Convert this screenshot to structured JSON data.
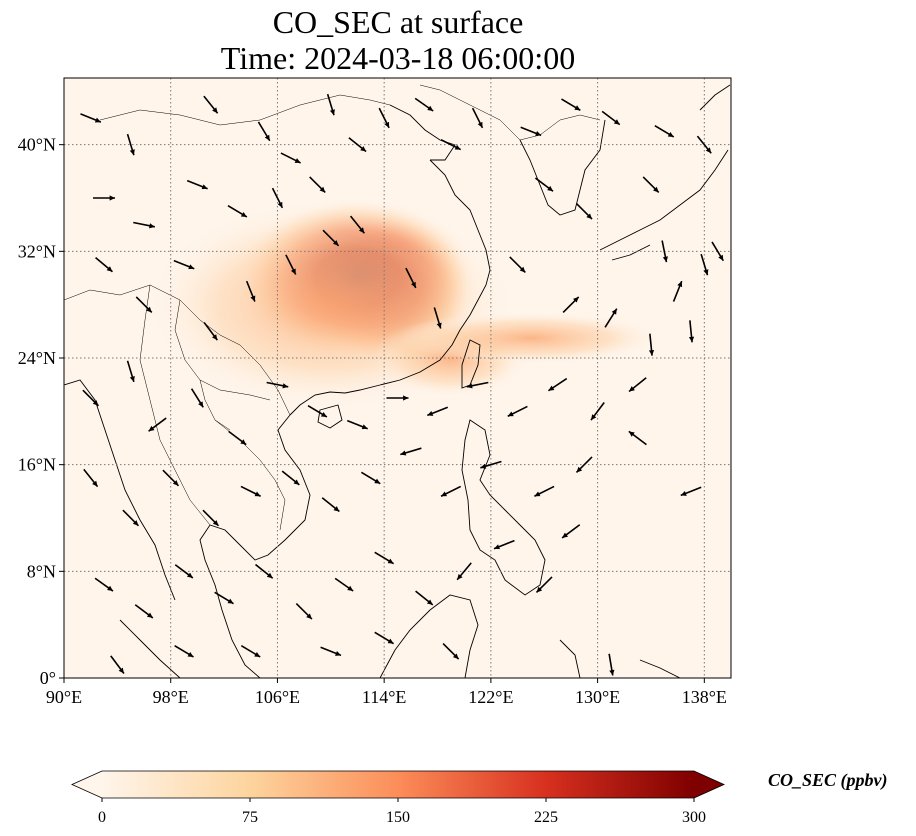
{
  "title_line1": "CO_SEC at surface",
  "title_line2": "Time: 2024-03-18 06:00:00",
  "map": {
    "lon_range": [
      90,
      140
    ],
    "lat_range": [
      0,
      45
    ],
    "lon_ticks": [
      {
        "value": 90,
        "label": "90°E"
      },
      {
        "value": 98,
        "label": "98°E"
      },
      {
        "value": 106,
        "label": "106°E"
      },
      {
        "value": 114,
        "label": "114°E"
      },
      {
        "value": 122,
        "label": "122°E"
      },
      {
        "value": 130,
        "label": "130°E"
      },
      {
        "value": 138,
        "label": "138°E"
      }
    ],
    "lat_ticks": [
      {
        "value": 0,
        "label": "0°"
      },
      {
        "value": 8,
        "label": "8°N"
      },
      {
        "value": 16,
        "label": "16°N"
      },
      {
        "value": 24,
        "label": "24°N"
      },
      {
        "value": 32,
        "label": "32°N"
      },
      {
        "value": 40,
        "label": "40°N"
      }
    ],
    "gridlines": true,
    "field_color_low": "#fff5eb",
    "field_color_high": "#7f0000",
    "plumes": [
      {
        "lon": 114.5,
        "lat": 29.0,
        "rlon": 6.0,
        "rlat": 5.5,
        "value": 300
      },
      {
        "lon": 112.0,
        "lat": 30.0,
        "rlon": 9.0,
        "rlat": 6.0,
        "value": 200
      },
      {
        "lon": 110.0,
        "lat": 28.0,
        "rlon": 14.0,
        "rlat": 8.0,
        "value": 60
      },
      {
        "lon": 119.0,
        "lat": 24.0,
        "rlon": 6.0,
        "rlat": 3.0,
        "value": 80
      },
      {
        "lon": 125.0,
        "lat": 25.5,
        "rlon": 10.0,
        "rlat": 2.0,
        "value": 35
      }
    ],
    "wind_vectors": [
      {
        "lon": 92,
        "lat": 42,
        "u": 1,
        "v": -0.4
      },
      {
        "lon": 95,
        "lat": 40,
        "u": 0.3,
        "v": -1
      },
      {
        "lon": 101,
        "lat": 43,
        "u": 0.8,
        "v": -1
      },
      {
        "lon": 105,
        "lat": 41,
        "u": 0.6,
        "v": -1
      },
      {
        "lon": 107,
        "lat": 39,
        "u": 1,
        "v": -0.5
      },
      {
        "lon": 110,
        "lat": 43,
        "u": 0.3,
        "v": -1
      },
      {
        "lon": 112,
        "lat": 40,
        "u": 1,
        "v": -0.8
      },
      {
        "lon": 114,
        "lat": 42,
        "u": 0.5,
        "v": -1
      },
      {
        "lon": 117,
        "lat": 43,
        "u": 1,
        "v": -0.7
      },
      {
        "lon": 119,
        "lat": 40,
        "u": 1,
        "v": -0.5
      },
      {
        "lon": 121,
        "lat": 42,
        "u": 0.5,
        "v": -1
      },
      {
        "lon": 125,
        "lat": 41,
        "u": 1,
        "v": -0.4
      },
      {
        "lon": 128,
        "lat": 43,
        "u": 1,
        "v": -0.6
      },
      {
        "lon": 131,
        "lat": 42,
        "u": 0.8,
        "v": -0.6
      },
      {
        "lon": 135,
        "lat": 41,
        "u": 1,
        "v": -0.6
      },
      {
        "lon": 138,
        "lat": 40,
        "u": 0.8,
        "v": -1
      },
      {
        "lon": 93,
        "lat": 36,
        "u": 1,
        "v": 0
      },
      {
        "lon": 96,
        "lat": 34,
        "u": 1,
        "v": -0.2
      },
      {
        "lon": 100,
        "lat": 37,
        "u": 1,
        "v": -0.4
      },
      {
        "lon": 103,
        "lat": 35,
        "u": 1,
        "v": -0.6
      },
      {
        "lon": 106,
        "lat": 36,
        "u": 0.5,
        "v": -1
      },
      {
        "lon": 109,
        "lat": 37,
        "u": 1,
        "v": -1
      },
      {
        "lon": 112,
        "lat": 34,
        "u": 0.8,
        "v": -1
      },
      {
        "lon": 126,
        "lat": 37,
        "u": 0.8,
        "v": -0.6
      },
      {
        "lon": 129,
        "lat": 35,
        "u": 0.6,
        "v": -0.6
      },
      {
        "lon": 134,
        "lat": 37,
        "u": 0.5,
        "v": -0.5
      },
      {
        "lon": 93,
        "lat": 31,
        "u": 0.6,
        "v": -0.5
      },
      {
        "lon": 96,
        "lat": 28,
        "u": 0.8,
        "v": -0.8
      },
      {
        "lon": 99,
        "lat": 31,
        "u": 1,
        "v": -0.4
      },
      {
        "lon": 101,
        "lat": 26,
        "u": 0.6,
        "v": -0.8
      },
      {
        "lon": 104,
        "lat": 29,
        "u": 0.4,
        "v": -1
      },
      {
        "lon": 107,
        "lat": 31,
        "u": 0.5,
        "v": -1
      },
      {
        "lon": 110,
        "lat": 33,
        "u": 1,
        "v": -1
      },
      {
        "lon": 116,
        "lat": 30,
        "u": 0.5,
        "v": -1
      },
      {
        "lon": 118,
        "lat": 27,
        "u": 0.3,
        "v": -1
      },
      {
        "lon": 124,
        "lat": 31,
        "u": 0.4,
        "v": -0.4
      },
      {
        "lon": 128,
        "lat": 28,
        "u": 0.5,
        "v": 0.5
      },
      {
        "lon": 131,
        "lat": 27,
        "u": 0.5,
        "v": 0.8
      },
      {
        "lon": 135,
        "lat": 32,
        "u": 0.2,
        "v": -1
      },
      {
        "lon": 136,
        "lat": 29,
        "u": 0.4,
        "v": 1
      },
      {
        "lon": 138,
        "lat": 31,
        "u": 0.3,
        "v": -1
      },
      {
        "lon": 139,
        "lat": 32,
        "u": 0.6,
        "v": -1
      },
      {
        "lon": 137,
        "lat": 26,
        "u": 0.1,
        "v": -1
      },
      {
        "lon": 134,
        "lat": 25,
        "u": 0.1,
        "v": -1
      },
      {
        "lon": 92,
        "lat": 21,
        "u": 0.5,
        "v": -0.5
      },
      {
        "lon": 95,
        "lat": 23,
        "u": 0.3,
        "v": -1
      },
      {
        "lon": 97,
        "lat": 19,
        "u": -0.8,
        "v": -0.6
      },
      {
        "lon": 100,
        "lat": 21,
        "u": 0.5,
        "v": -0.8
      },
      {
        "lon": 103,
        "lat": 18,
        "u": 0.8,
        "v": -0.6
      },
      {
        "lon": 106,
        "lat": 22,
        "u": 1,
        "v": -0.2
      },
      {
        "lon": 109,
        "lat": 20,
        "u": 1,
        "v": -0.6
      },
      {
        "lon": 112,
        "lat": 19,
        "u": 1,
        "v": -0.4
      },
      {
        "lon": 115,
        "lat": 21,
        "u": 1,
        "v": 0
      },
      {
        "lon": 118,
        "lat": 20,
        "u": -1,
        "v": -0.4
      },
      {
        "lon": 121,
        "lat": 22,
        "u": -1,
        "v": -0.2
      },
      {
        "lon": 124,
        "lat": 20,
        "u": -1,
        "v": -0.5
      },
      {
        "lon": 127,
        "lat": 22,
        "u": -0.6,
        "v": -0.4
      },
      {
        "lon": 130,
        "lat": 20,
        "u": -0.6,
        "v": -0.8
      },
      {
        "lon": 133,
        "lat": 22,
        "u": -0.5,
        "v": -0.4
      },
      {
        "lon": 92,
        "lat": 15,
        "u": 0.4,
        "v": -0.5
      },
      {
        "lon": 95,
        "lat": 12,
        "u": 0.6,
        "v": -0.6
      },
      {
        "lon": 98,
        "lat": 15,
        "u": 0.8,
        "v": -0.8
      },
      {
        "lon": 101,
        "lat": 12,
        "u": 0.8,
        "v": -0.8
      },
      {
        "lon": 104,
        "lat": 14,
        "u": 1,
        "v": -0.5
      },
      {
        "lon": 107,
        "lat": 15,
        "u": 1,
        "v": -0.8
      },
      {
        "lon": 110,
        "lat": 13,
        "u": 1,
        "v": -0.8
      },
      {
        "lon": 113,
        "lat": 15,
        "u": 1,
        "v": -0.6
      },
      {
        "lon": 116,
        "lat": 17,
        "u": -1,
        "v": -0.3
      },
      {
        "lon": 119,
        "lat": 14,
        "u": -1,
        "v": -0.5
      },
      {
        "lon": 122,
        "lat": 16,
        "u": -1,
        "v": -0.3
      },
      {
        "lon": 126,
        "lat": 14,
        "u": -1,
        "v": -0.5
      },
      {
        "lon": 129,
        "lat": 16,
        "u": -0.5,
        "v": -0.5
      },
      {
        "lon": 133,
        "lat": 18,
        "u": -0.4,
        "v": 0.3
      },
      {
        "lon": 137,
        "lat": 14,
        "u": -1,
        "v": -0.4
      },
      {
        "lon": 93,
        "lat": 7,
        "u": 0.7,
        "v": -0.5
      },
      {
        "lon": 96,
        "lat": 5,
        "u": 0.8,
        "v": -0.6
      },
      {
        "lon": 99,
        "lat": 8,
        "u": 0.8,
        "v": -0.6
      },
      {
        "lon": 102,
        "lat": 6,
        "u": 1,
        "v": -0.6
      },
      {
        "lon": 105,
        "lat": 8,
        "u": 1,
        "v": -0.8
      },
      {
        "lon": 108,
        "lat": 5,
        "u": 1,
        "v": -1
      },
      {
        "lon": 111,
        "lat": 7,
        "u": 1,
        "v": -0.7
      },
      {
        "lon": 114,
        "lat": 9,
        "u": 1,
        "v": -0.6
      },
      {
        "lon": 117,
        "lat": 6,
        "u": 1,
        "v": -0.8
      },
      {
        "lon": 120,
        "lat": 8,
        "u": -0.5,
        "v": -0.6
      },
      {
        "lon": 123,
        "lat": 10,
        "u": -1,
        "v": -0.4
      },
      {
        "lon": 126,
        "lat": 7,
        "u": -0.6,
        "v": -0.6
      },
      {
        "lon": 128,
        "lat": 11,
        "u": -0.8,
        "v": -0.6
      },
      {
        "lon": 94,
        "lat": 1,
        "u": 0.6,
        "v": -0.8
      },
      {
        "lon": 99,
        "lat": 2,
        "u": 1,
        "v": -0.6
      },
      {
        "lon": 104,
        "lat": 2,
        "u": 1,
        "v": -0.6
      },
      {
        "lon": 110,
        "lat": 2,
        "u": 1,
        "v": -0.4
      },
      {
        "lon": 114,
        "lat": 3,
        "u": 1,
        "v": -0.6
      },
      {
        "lon": 119,
        "lat": 2,
        "u": 0.6,
        "v": -0.6
      },
      {
        "lon": 131,
        "lat": 1,
        "u": 0.1,
        "v": -0.6
      }
    ]
  },
  "colorbar": {
    "vmin": 0,
    "vmax": 300,
    "ticks": [
      {
        "value": 0,
        "label": "0"
      },
      {
        "value": 75,
        "label": "75"
      },
      {
        "value": 150,
        "label": "150"
      },
      {
        "value": 225,
        "label": "225"
      },
      {
        "value": 300,
        "label": "300"
      }
    ],
    "label": "CO_SEC (ppbv)",
    "extend": "both"
  }
}
